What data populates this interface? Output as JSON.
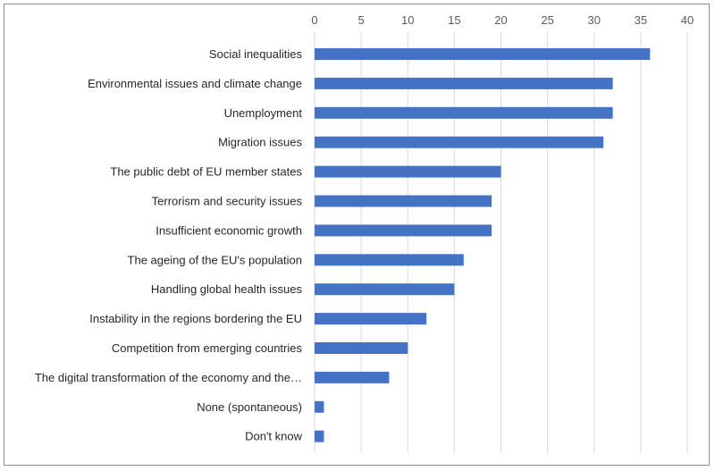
{
  "chart_data": {
    "type": "bar",
    "orientation": "horizontal",
    "title": "",
    "xlabel": "",
    "ylabel": "",
    "xlim": [
      0,
      40
    ],
    "x_ticks": [
      0,
      5,
      10,
      15,
      20,
      25,
      30,
      35,
      40
    ],
    "x_axis_position": "top",
    "grid": true,
    "legend": "none",
    "bar_color": "#4472C4",
    "categories": [
      "Social inequalities",
      "Environmental issues and climate change",
      "Unemployment",
      "Migration issues",
      "The public debt of EU member states",
      "Terrorism and security issues",
      "Insufficient economic growth",
      "The ageing of the EU's population",
      "Handling global health issues",
      "Instability in the regions bordering the EU",
      "Competition from emerging countries",
      "The digital transformation of the economy and the…",
      "None (spontaneous)",
      "Don't know"
    ],
    "values": [
      36,
      32,
      32,
      31,
      20,
      19,
      19,
      16,
      15,
      12,
      10,
      8,
      1,
      1
    ]
  }
}
